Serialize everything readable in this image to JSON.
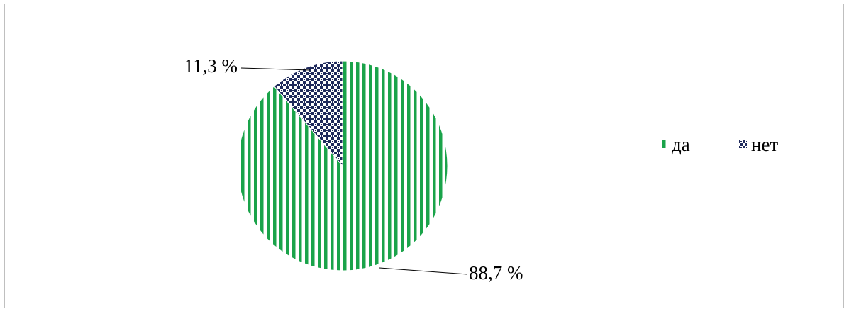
{
  "chart_data": {
    "type": "pie",
    "categories": [
      "да",
      "нет"
    ],
    "values": [
      88.7,
      11.3
    ],
    "data_labels": [
      "88,7 %",
      "11,3 %"
    ],
    "legend": {
      "entries": [
        "да",
        "нет"
      ],
      "placement": "right"
    },
    "colors": {
      "да": "#1aa34a",
      "нет": "#1f2a5c"
    },
    "patterns": {
      "да": "vertical-stripes",
      "нет": "dotted-checker"
    }
  }
}
